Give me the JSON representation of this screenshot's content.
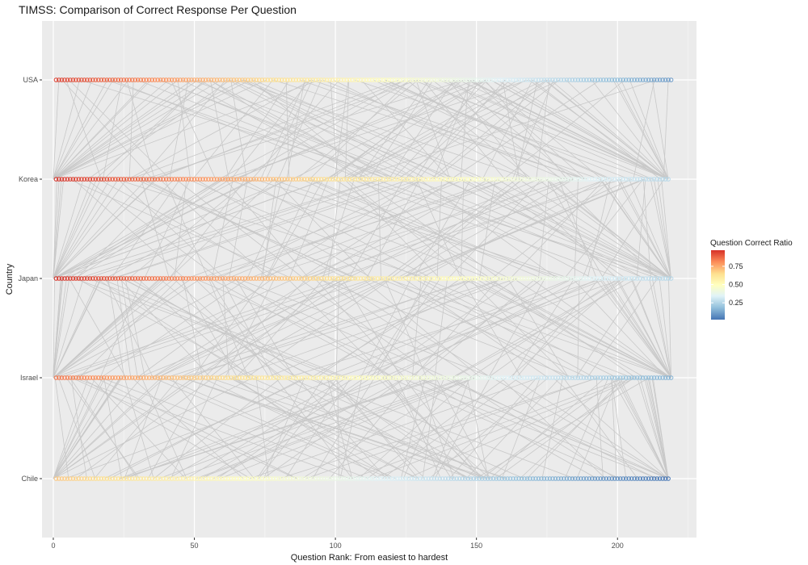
{
  "chart_data": {
    "type": "scatter",
    "title": "TIMSS: Comparison of Correct Response Per Question",
    "xlabel": "Question Rank: From easiest to hardest",
    "ylabel": "Country",
    "xlim": [
      -4,
      228
    ],
    "x_ticks": [
      0,
      50,
      100,
      150,
      200
    ],
    "x_tick_labels": [
      "0",
      "50",
      "100",
      "150",
      "200"
    ],
    "categories": [
      "Chile",
      "Israel",
      "Japan",
      "Korea",
      "USA"
    ],
    "grid": true,
    "panel_background": "#ebebeb",
    "connector_color": "#c8c8c8",
    "series": [
      {
        "category": "USA",
        "rank_max": 219,
        "ratio_start": 0.95,
        "ratio_end": 0.1
      },
      {
        "category": "Korea",
        "rank_max": 218,
        "ratio_start": 0.97,
        "ratio_end": 0.25
      },
      {
        "category": "Japan",
        "rank_max": 219,
        "ratio_start": 0.97,
        "ratio_end": 0.25
      },
      {
        "category": "Israel",
        "rank_max": 219,
        "ratio_start": 0.85,
        "ratio_end": 0.15
      },
      {
        "category": "Chile",
        "rank_max": 218,
        "ratio_start": 0.7,
        "ratio_end": 0.02
      }
    ],
    "legend": {
      "title": "Question Correct Ratio",
      "position": "right",
      "range": [
        0.02,
        0.97
      ],
      "breaks": [
        0.75,
        0.5,
        0.25
      ],
      "break_labels": [
        "0.75",
        "0.50",
        "0.25"
      ],
      "palette": [
        "#d73027",
        "#fc8d59",
        "#fee090",
        "#ffffbf",
        "#e0f3f8",
        "#91bfdb",
        "#4575b4"
      ]
    }
  }
}
